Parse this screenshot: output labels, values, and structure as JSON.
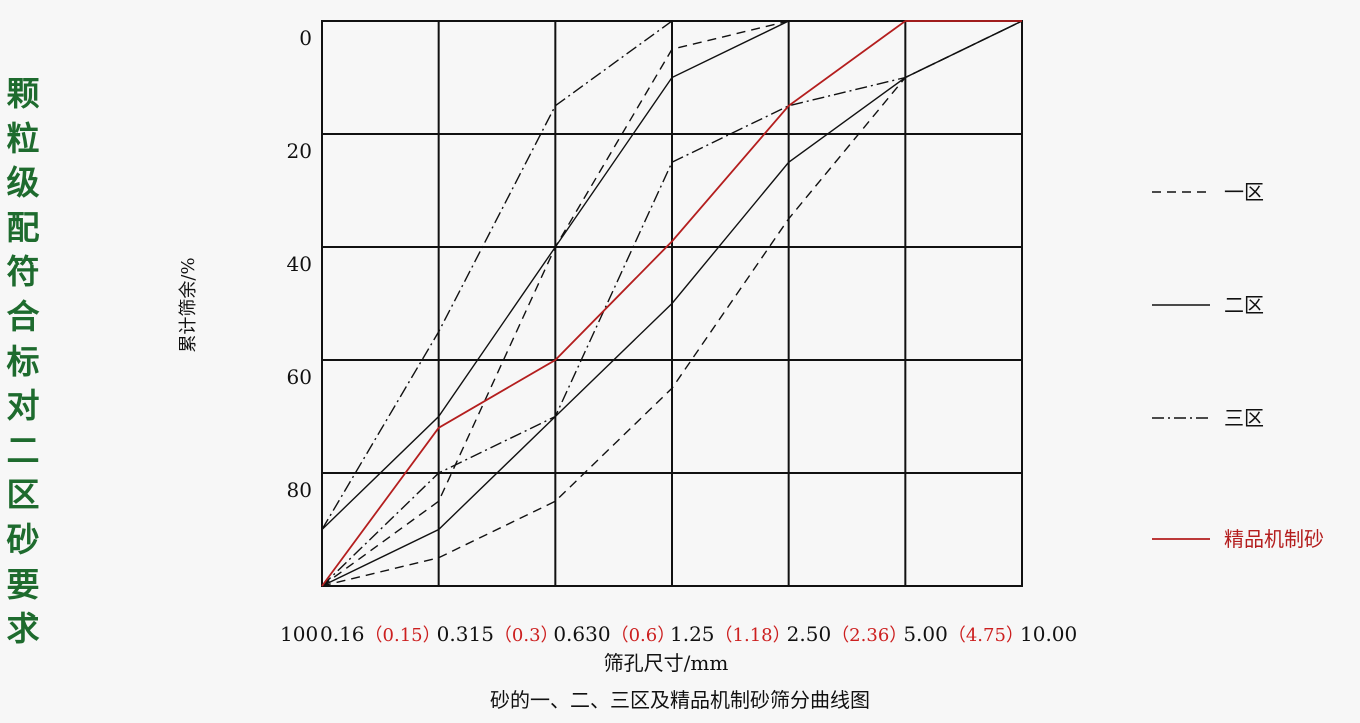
{
  "side_title": "颗粒级配符合标对二区砂要求",
  "chart_data": {
    "type": "line",
    "title": "砂的一、二、三区及精品机制砂筛分曲线图",
    "xlabel": "筛孔尺寸/mm",
    "ylabel": "累计筛余/%",
    "yticks": [
      "0",
      "20",
      "40",
      "60",
      "80",
      "100"
    ],
    "x_ticks": [
      {
        "main": "0.16",
        "alt": "（0.15）"
      },
      {
        "main": "0.315",
        "alt": "（0.3）"
      },
      {
        "main": "0.630",
        "alt": "（0.6）"
      },
      {
        "main": "1.25",
        "alt": "（1.18）"
      },
      {
        "main": "2.50",
        "alt": "（2.36）"
      },
      {
        "main": "5.00",
        "alt": "（4.75）"
      },
      {
        "main": "10.00",
        "alt": ""
      }
    ],
    "ylim": [
      0,
      100
    ],
    "y_inverted": true,
    "grid": true,
    "legend_position": "right",
    "series": [
      {
        "name": "一区",
        "style": "dashed",
        "color": "#111111",
        "values": [
          100,
          95,
          85,
          65,
          35,
          10,
          0
        ]
      },
      {
        "name": "一区",
        "style": "dashed",
        "color": "#111111",
        "values": [
          100,
          85,
          40,
          5,
          0,
          0,
          0
        ],
        "legend": false
      },
      {
        "name": "二区",
        "style": "solid",
        "color": "#111111",
        "values": [
          100,
          90,
          70,
          50,
          25,
          10,
          0
        ]
      },
      {
        "name": "二区",
        "style": "solid",
        "color": "#111111",
        "values": [
          90,
          70,
          40,
          10,
          0,
          0,
          0
        ],
        "legend": false
      },
      {
        "name": "三区",
        "style": "dashdot",
        "color": "#111111",
        "values": [
          100,
          80,
          70,
          25,
          15,
          10,
          0
        ]
      },
      {
        "name": "三区",
        "style": "dashdot",
        "color": "#111111",
        "values": [
          90,
          55,
          15,
          0,
          0,
          0,
          0
        ],
        "legend": false
      },
      {
        "name": "精品机制砂",
        "style": "solid",
        "color": "#b41e1e",
        "values": [
          100,
          72,
          60,
          39,
          15,
          0,
          0
        ]
      }
    ]
  }
}
